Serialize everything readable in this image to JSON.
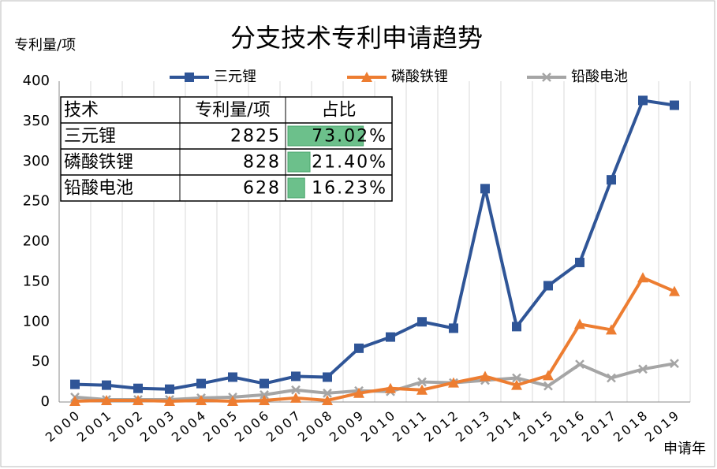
{
  "chart_data": {
    "type": "line",
    "title": "分支技术专利申请趋势",
    "y_label": "专利量/项",
    "x_label": "申请年",
    "categories": [
      "2000",
      "2001",
      "2002",
      "2003",
      "2004",
      "2005",
      "2006",
      "2007",
      "2008",
      "2009",
      "2010",
      "2011",
      "2012",
      "2013",
      "2014",
      "2015",
      "2016",
      "2017",
      "2018",
      "2019"
    ],
    "series": [
      {
        "name": "三元锂",
        "color": "#2f5597",
        "marker": "square",
        "values": [
          22,
          21,
          17,
          16,
          23,
          31,
          23,
          32,
          31,
          67,
          81,
          100,
          92,
          266,
          94,
          145,
          174,
          277,
          376,
          370
        ]
      },
      {
        "name": "磷酸铁锂",
        "color": "#ed7d31",
        "marker": "triangle",
        "values": [
          1,
          2,
          2,
          1,
          2,
          1,
          2,
          5,
          2,
          11,
          17,
          15,
          24,
          32,
          21,
          33,
          97,
          90,
          155,
          138
        ]
      },
      {
        "name": "铅酸电池",
        "color": "#a5a5a5",
        "marker": "x",
        "values": [
          6,
          3,
          3,
          3,
          5,
          6,
          9,
          15,
          11,
          14,
          13,
          25,
          24,
          27,
          30,
          20,
          47,
          30,
          41,
          48
        ]
      }
    ],
    "ylim": [
      0,
      400
    ],
    "yticks": [
      0,
      50,
      100,
      150,
      200,
      250,
      300,
      350,
      400
    ],
    "grid": true,
    "legend": "top"
  },
  "table": {
    "header": [
      "技术",
      "专利量/项",
      "占比"
    ],
    "rows": [
      [
        "三元锂",
        "2825",
        {
          "value": 73.02,
          "label": "73.02%"
        }
      ],
      [
        "磷酸铁锂",
        "828",
        {
          "value": 21.4,
          "label": "21.40%"
        }
      ],
      [
        "铅酸电池",
        "628",
        {
          "value": 16.23,
          "label": "16.23%"
        }
      ]
    ]
  }
}
